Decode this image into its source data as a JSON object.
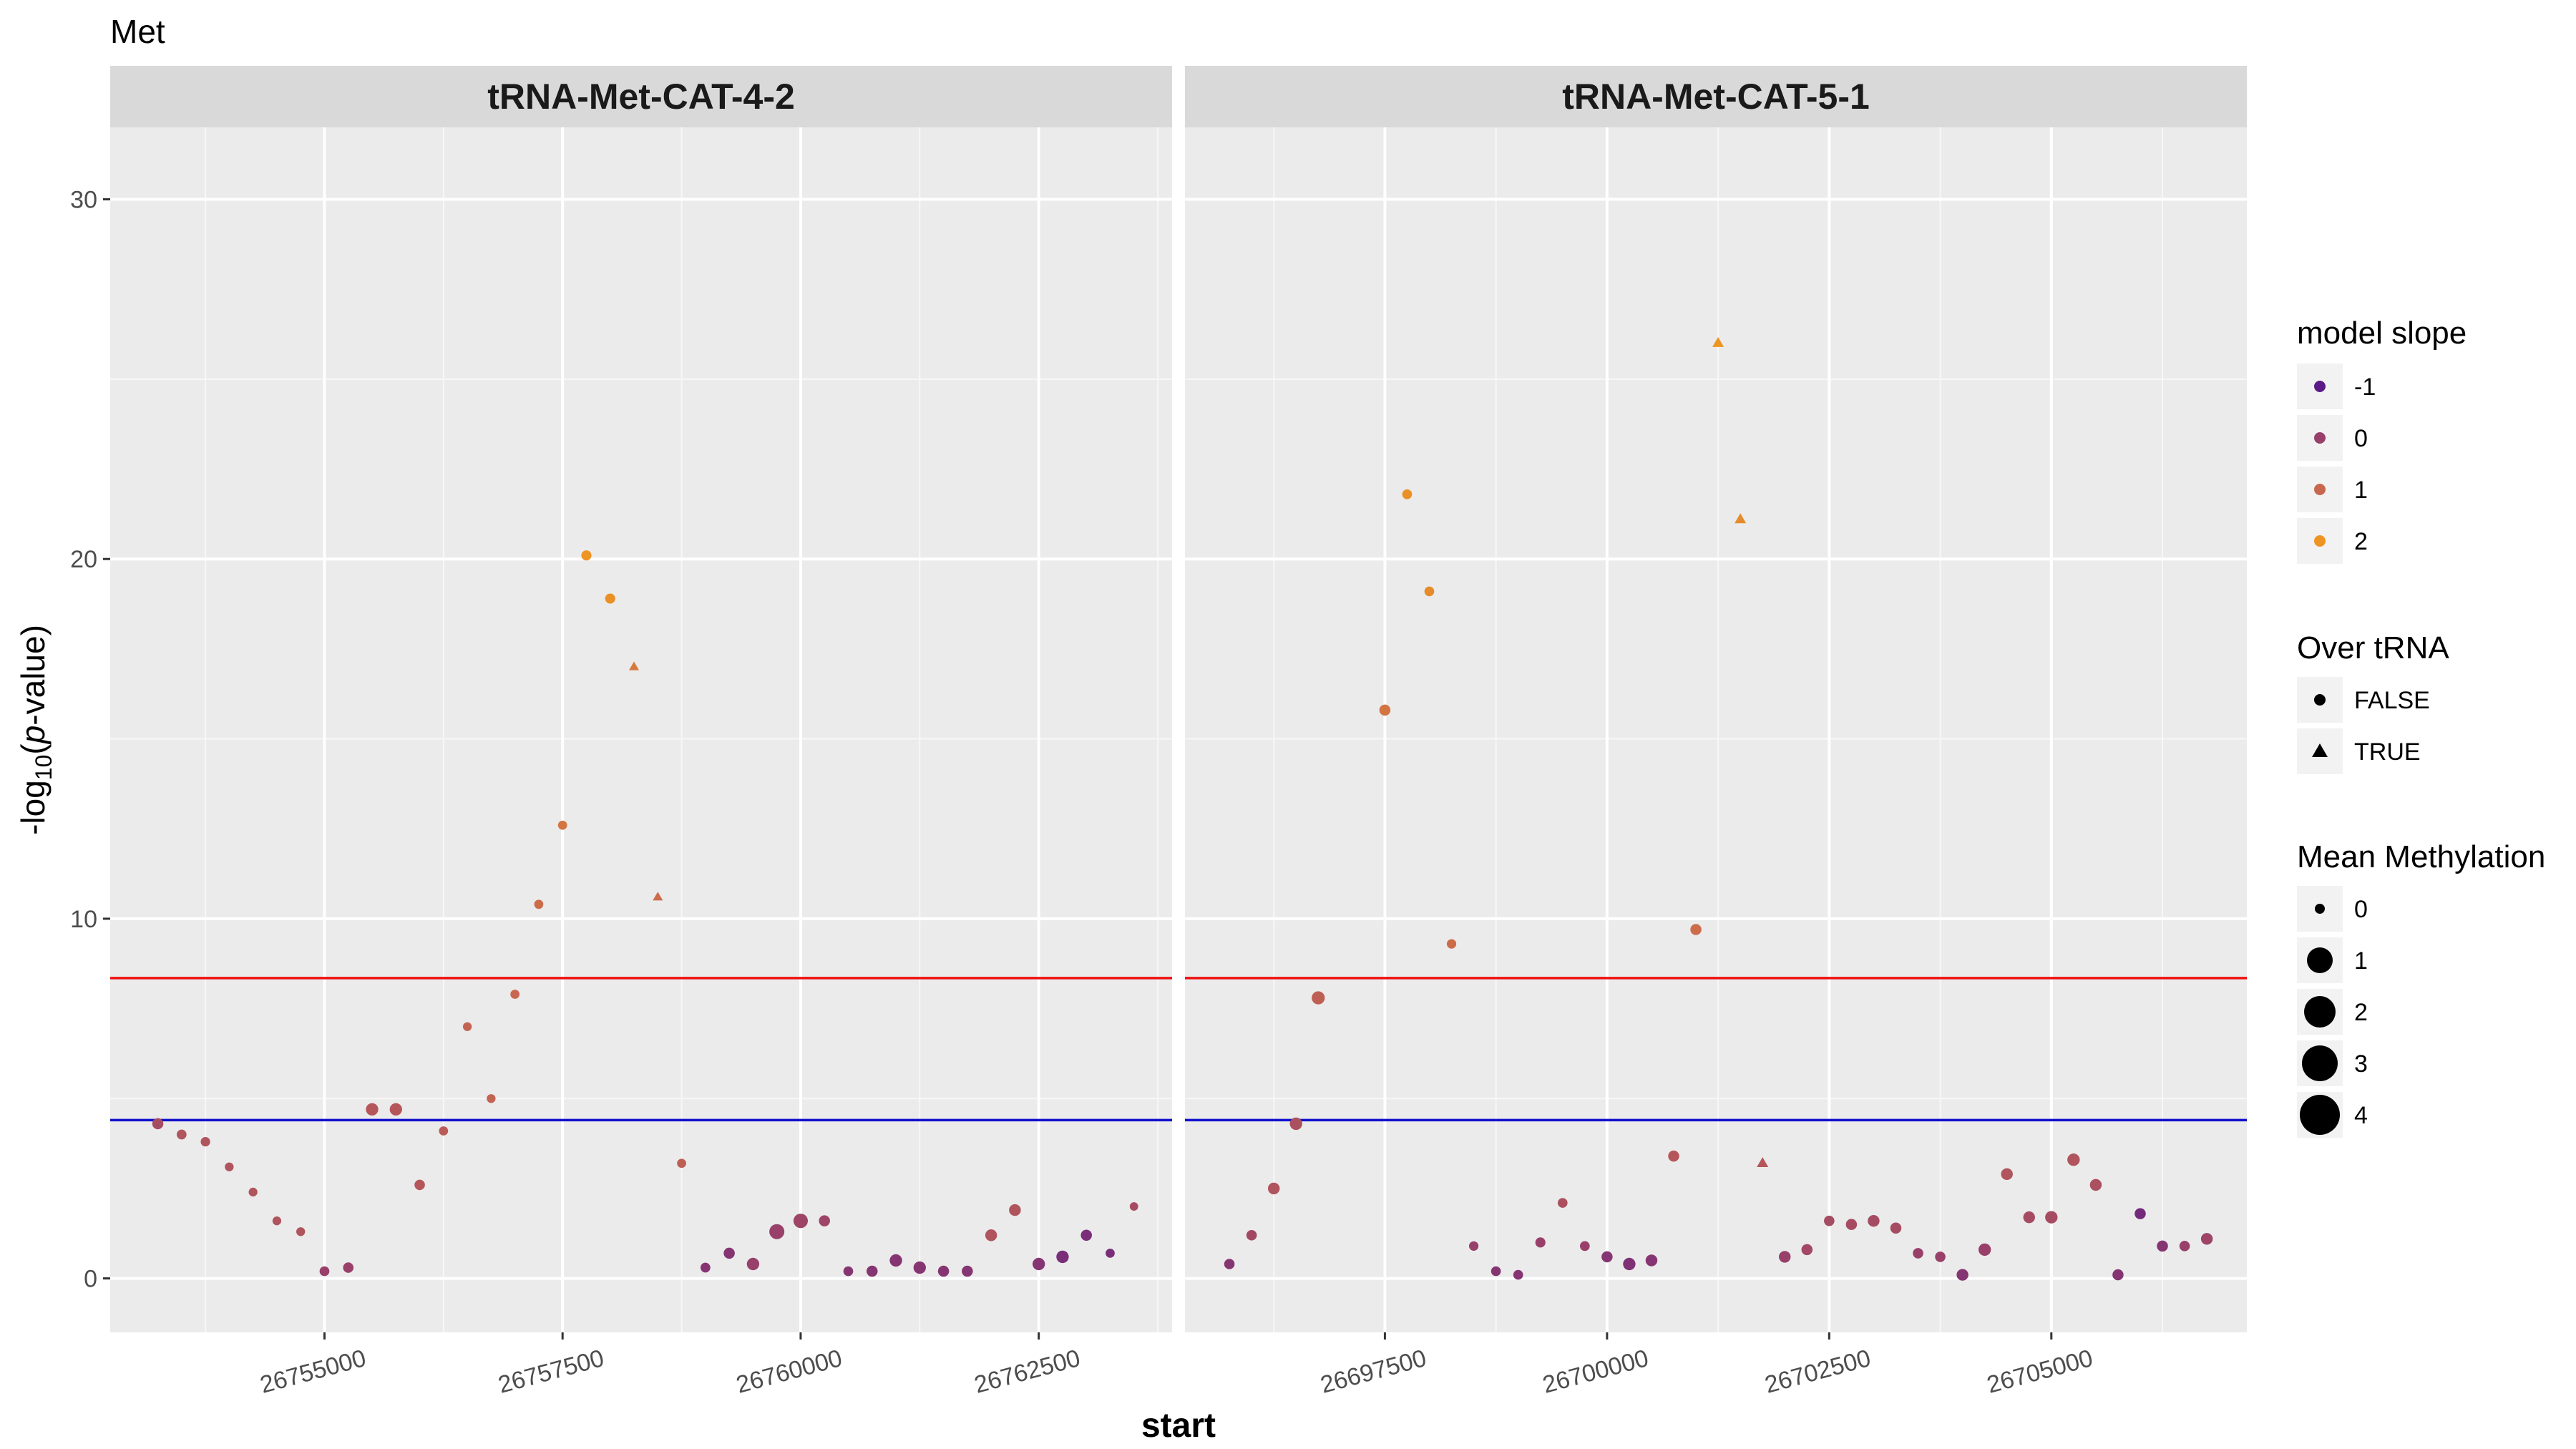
{
  "title": "Met",
  "chart_data": {
    "type": "scatter",
    "xlabel": "start",
    "ylabel_parts": [
      "-log",
      "10",
      "(",
      "p",
      "-value)"
    ],
    "ylim": [
      -1.5,
      32
    ],
    "yticks": [
      0,
      10,
      20,
      30
    ],
    "grid": true,
    "hlines": [
      {
        "y": 8.35,
        "color": "#ee1111"
      },
      {
        "y": 4.4,
        "color": "#1111cc"
      }
    ],
    "slope_colors": {
      "-1": "#5b1b87",
      "0": "#98406a",
      "1": "#c8674f",
      "2": "#ee9422"
    },
    "panels": [
      {
        "strip": "tRNA-Met-CAT-4-2",
        "xlim": [
          26752750,
          26763900
        ],
        "xticks": [
          26755000,
          26757500,
          26760000,
          26762500
        ],
        "xtick_labels": [
          "26755000",
          "26757500",
          "26760000",
          "26762500"
        ],
        "points": [
          {
            "x": 26753250,
            "y": 4.3,
            "slope": 0.3,
            "m": 0.6,
            "t": false
          },
          {
            "x": 26753500,
            "y": 4.0,
            "slope": 0.5,
            "m": 0.4,
            "t": false
          },
          {
            "x": 26753750,
            "y": 3.8,
            "slope": 0.5,
            "m": 0.35,
            "t": false
          },
          {
            "x": 26754000,
            "y": 3.1,
            "slope": 0.5,
            "m": 0.25,
            "t": false
          },
          {
            "x": 26754250,
            "y": 2.4,
            "slope": 0.5,
            "m": 0.25,
            "t": false
          },
          {
            "x": 26754500,
            "y": 1.6,
            "slope": 0.5,
            "m": 0.25,
            "t": false
          },
          {
            "x": 26754750,
            "y": 1.3,
            "slope": 0.5,
            "m": 0.25,
            "t": false
          },
          {
            "x": 26755000,
            "y": 0.2,
            "slope": 0.0,
            "m": 0.4,
            "t": false
          },
          {
            "x": 26755250,
            "y": 0.3,
            "slope": 0.0,
            "m": 0.5,
            "t": false
          },
          {
            "x": 26755500,
            "y": 4.7,
            "slope": 0.6,
            "m": 0.8,
            "t": false
          },
          {
            "x": 26755750,
            "y": 4.7,
            "slope": 0.6,
            "m": 0.8,
            "t": false
          },
          {
            "x": 26756000,
            "y": 2.6,
            "slope": 0.6,
            "m": 0.5,
            "t": false
          },
          {
            "x": 26756250,
            "y": 4.1,
            "slope": 0.7,
            "m": 0.3,
            "t": false
          },
          {
            "x": 26756500,
            "y": 7.0,
            "slope": 0.9,
            "m": 0.25,
            "t": false
          },
          {
            "x": 26756750,
            "y": 5.0,
            "slope": 0.9,
            "m": 0.25,
            "t": false
          },
          {
            "x": 26757000,
            "y": 7.9,
            "slope": 1.0,
            "m": 0.3,
            "t": false
          },
          {
            "x": 26757250,
            "y": 10.4,
            "slope": 1.1,
            "m": 0.3,
            "t": false
          },
          {
            "x": 26757500,
            "y": 12.6,
            "slope": 1.3,
            "m": 0.3,
            "t": false
          },
          {
            "x": 26757750,
            "y": 20.1,
            "slope": 2.0,
            "m": 0.45,
            "t": false
          },
          {
            "x": 26758000,
            "y": 18.9,
            "slope": 1.9,
            "m": 0.45,
            "t": false
          },
          {
            "x": 26758250,
            "y": 17.0,
            "slope": 1.4,
            "m": 0.3,
            "t": true
          },
          {
            "x": 26758500,
            "y": 10.6,
            "slope": 1.1,
            "m": 0.3,
            "t": true
          },
          {
            "x": 26758750,
            "y": 3.2,
            "slope": 0.8,
            "m": 0.3,
            "t": false
          },
          {
            "x": 26759000,
            "y": 0.3,
            "slope": -0.3,
            "m": 0.4,
            "t": false
          },
          {
            "x": 26759250,
            "y": 0.7,
            "slope": -0.3,
            "m": 0.6,
            "t": false
          },
          {
            "x": 26759500,
            "y": 0.4,
            "slope": 0.0,
            "m": 0.8,
            "t": false
          },
          {
            "x": 26759750,
            "y": 1.3,
            "slope": 0.0,
            "m": 1.2,
            "t": false
          },
          {
            "x": 26760000,
            "y": 1.6,
            "slope": 0.1,
            "m": 1.1,
            "t": false
          },
          {
            "x": 26760250,
            "y": 1.6,
            "slope": 0.1,
            "m": 0.6,
            "t": false
          },
          {
            "x": 26760500,
            "y": 0.2,
            "slope": -0.3,
            "m": 0.4,
            "t": false
          },
          {
            "x": 26760750,
            "y": 0.2,
            "slope": -0.3,
            "m": 0.6,
            "t": false
          },
          {
            "x": 26761000,
            "y": 0.5,
            "slope": -0.3,
            "m": 0.8,
            "t": false
          },
          {
            "x": 26761250,
            "y": 0.3,
            "slope": -0.3,
            "m": 0.8,
            "t": false
          },
          {
            "x": 26761500,
            "y": 0.2,
            "slope": -0.3,
            "m": 0.6,
            "t": false
          },
          {
            "x": 26761750,
            "y": 0.2,
            "slope": -0.3,
            "m": 0.6,
            "t": false
          },
          {
            "x": 26762000,
            "y": 1.2,
            "slope": 0.5,
            "m": 0.7,
            "t": false
          },
          {
            "x": 26762250,
            "y": 1.9,
            "slope": 0.5,
            "m": 0.7,
            "t": false
          },
          {
            "x": 26762500,
            "y": 0.4,
            "slope": -0.3,
            "m": 0.8,
            "t": false
          },
          {
            "x": 26762750,
            "y": 0.6,
            "slope": -0.5,
            "m": 0.8,
            "t": false
          },
          {
            "x": 26763000,
            "y": 1.2,
            "slope": -0.5,
            "m": 0.6,
            "t": false
          },
          {
            "x": 26763250,
            "y": 0.7,
            "slope": -0.5,
            "m": 0.3,
            "t": false
          },
          {
            "x": 26763500,
            "y": 2.0,
            "slope": 0.3,
            "m": 0.2,
            "t": false
          }
        ]
      },
      {
        "strip": "tRNA-Met-CAT-5-1",
        "xlim": [
          26695250,
          26707200
        ],
        "xticks": [
          26697500,
          26700000,
          26702500,
          26705000
        ],
        "xtick_labels": [
          "26697500",
          "26700000",
          "26702500",
          "26705000"
        ],
        "points": [
          {
            "x": 26695750,
            "y": 0.4,
            "slope": -0.3,
            "m": 0.5,
            "t": false
          },
          {
            "x": 26696000,
            "y": 1.2,
            "slope": 0.2,
            "m": 0.5,
            "t": false
          },
          {
            "x": 26696250,
            "y": 2.5,
            "slope": 0.5,
            "m": 0.7,
            "t": false
          },
          {
            "x": 26696500,
            "y": 4.3,
            "slope": 0.4,
            "m": 0.8,
            "t": false
          },
          {
            "x": 26696750,
            "y": 7.8,
            "slope": 0.8,
            "m": 0.9,
            "t": false
          },
          {
            "x": 26697500,
            "y": 15.8,
            "slope": 1.3,
            "m": 0.6,
            "t": false
          },
          {
            "x": 26697750,
            "y": 21.8,
            "slope": 1.9,
            "m": 0.4,
            "t": false
          },
          {
            "x": 26698000,
            "y": 19.1,
            "slope": 1.8,
            "m": 0.4,
            "t": false
          },
          {
            "x": 26698250,
            "y": 9.3,
            "slope": 1.1,
            "m": 0.35,
            "t": false
          },
          {
            "x": 26698500,
            "y": 0.9,
            "slope": 0.0,
            "m": 0.35,
            "t": false
          },
          {
            "x": 26698750,
            "y": 0.2,
            "slope": -0.3,
            "m": 0.4,
            "t": false
          },
          {
            "x": 26699000,
            "y": 0.1,
            "slope": -0.3,
            "m": 0.4,
            "t": false
          },
          {
            "x": 26699250,
            "y": 1.0,
            "slope": 0.0,
            "m": 0.45,
            "t": false
          },
          {
            "x": 26699500,
            "y": 2.1,
            "slope": 0.4,
            "m": 0.4,
            "t": false
          },
          {
            "x": 26699750,
            "y": 0.9,
            "slope": 0.0,
            "m": 0.4,
            "t": false
          },
          {
            "x": 26700000,
            "y": 0.6,
            "slope": -0.3,
            "m": 0.6,
            "t": false
          },
          {
            "x": 26700250,
            "y": 0.4,
            "slope": -0.4,
            "m": 0.8,
            "t": false
          },
          {
            "x": 26700500,
            "y": 0.5,
            "slope": -0.3,
            "m": 0.7,
            "t": false
          },
          {
            "x": 26700750,
            "y": 3.4,
            "slope": 0.6,
            "m": 0.6,
            "t": false
          },
          {
            "x": 26701000,
            "y": 9.7,
            "slope": 1.1,
            "m": 0.6,
            "t": false
          },
          {
            "x": 26701250,
            "y": 26.0,
            "slope": 2.0,
            "m": 0.5,
            "t": true
          },
          {
            "x": 26701500,
            "y": 21.1,
            "slope": 1.8,
            "m": 0.5,
            "t": true
          },
          {
            "x": 26701750,
            "y": 3.2,
            "slope": 0.6,
            "m": 0.5,
            "t": true
          },
          {
            "x": 26702000,
            "y": 0.6,
            "slope": 0.0,
            "m": 0.7,
            "t": false
          },
          {
            "x": 26702250,
            "y": 0.8,
            "slope": 0.2,
            "m": 0.6,
            "t": false
          },
          {
            "x": 26702500,
            "y": 1.6,
            "slope": 0.3,
            "m": 0.5,
            "t": false
          },
          {
            "x": 26702750,
            "y": 1.5,
            "slope": 0.3,
            "m": 0.6,
            "t": false
          },
          {
            "x": 26703000,
            "y": 1.6,
            "slope": 0.3,
            "m": 0.7,
            "t": false
          },
          {
            "x": 26703250,
            "y": 1.4,
            "slope": 0.3,
            "m": 0.6,
            "t": false
          },
          {
            "x": 26703500,
            "y": 0.7,
            "slope": 0.0,
            "m": 0.5,
            "t": false
          },
          {
            "x": 26703750,
            "y": 0.6,
            "slope": 0.0,
            "m": 0.5,
            "t": false
          },
          {
            "x": 26704000,
            "y": 0.1,
            "slope": -0.3,
            "m": 0.7,
            "t": false
          },
          {
            "x": 26704250,
            "y": 0.8,
            "slope": 0.0,
            "m": 0.8,
            "t": false
          },
          {
            "x": 26704500,
            "y": 2.9,
            "slope": 0.5,
            "m": 0.7,
            "t": false
          },
          {
            "x": 26704750,
            "y": 1.7,
            "slope": 0.3,
            "m": 0.7,
            "t": false
          },
          {
            "x": 26705000,
            "y": 1.7,
            "slope": 0.3,
            "m": 0.8,
            "t": false
          },
          {
            "x": 26705250,
            "y": 3.3,
            "slope": 0.5,
            "m": 0.8,
            "t": false
          },
          {
            "x": 26705500,
            "y": 2.6,
            "slope": 0.4,
            "m": 0.7,
            "t": false
          },
          {
            "x": 26705750,
            "y": 0.1,
            "slope": -0.3,
            "m": 0.6,
            "t": false
          },
          {
            "x": 26706000,
            "y": 1.8,
            "slope": -0.6,
            "m": 0.6,
            "t": false
          },
          {
            "x": 26706250,
            "y": 0.9,
            "slope": -0.3,
            "m": 0.6,
            "t": false
          },
          {
            "x": 26706500,
            "y": 0.9,
            "slope": 0.0,
            "m": 0.5,
            "t": false
          },
          {
            "x": 26706750,
            "y": 1.1,
            "slope": 0.1,
            "m": 0.7,
            "t": false
          }
        ]
      }
    ],
    "legend": {
      "placement": "right",
      "color": {
        "title": "model slope",
        "items": [
          {
            "label": "-1",
            "color": "#5b1b87"
          },
          {
            "label": "0",
            "color": "#98406a"
          },
          {
            "label": "1",
            "color": "#c8674f"
          },
          {
            "label": "2",
            "color": "#ee9422"
          }
        ]
      },
      "shape": {
        "title": "Over tRNA",
        "items": [
          {
            "label": "FALSE",
            "shape": "circle"
          },
          {
            "label": "TRUE",
            "shape": "triangle"
          }
        ]
      },
      "size": {
        "title": "Mean Methylation",
        "items": [
          {
            "label": "0",
            "value": 0
          },
          {
            "label": "1",
            "value": 1
          },
          {
            "label": "2",
            "value": 2
          },
          {
            "label": "3",
            "value": 3
          },
          {
            "label": "4",
            "value": 4
          }
        ]
      }
    }
  }
}
